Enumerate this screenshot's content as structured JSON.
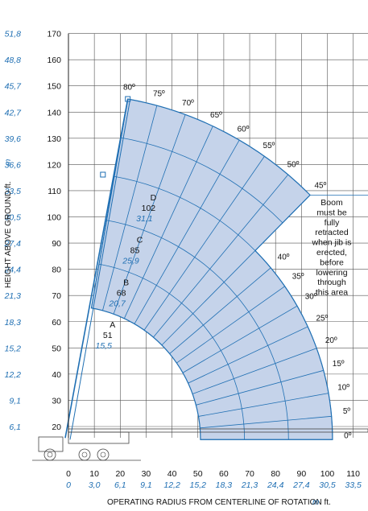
{
  "chart_data": {
    "type": "area",
    "title": "",
    "xlabel": "OPERATING RADIUS FROM CENTERLINE OF ROTATION ft.",
    "xlabel_unit": "m",
    "ylabel": "HEIGHT ABOVE GROUND ft.",
    "ylabel_unit": "m",
    "xlim": [
      0,
      110
    ],
    "ylim": [
      10,
      170
    ],
    "grid": true,
    "x_ticks_ft": [
      0,
      10,
      20,
      30,
      40,
      50,
      60,
      70,
      80,
      90,
      100,
      110
    ],
    "x_ticks_m": [
      "0",
      "3,0",
      "6,1",
      "9,1",
      "12,2",
      "15,2",
      "18,3",
      "21,3",
      "24,4",
      "27,4",
      "30,5",
      "33,5"
    ],
    "y_ticks_ft": [
      20,
      30,
      40,
      50,
      60,
      70,
      80,
      90,
      100,
      110,
      120,
      130,
      140,
      150,
      160,
      170
    ],
    "y_ticks_m": [
      "6,1",
      "9,1",
      "12,2",
      "15,2",
      "18,3",
      "21,3",
      "24,4",
      "27,4",
      "30,5",
      "33,5",
      "36,6",
      "39,6",
      "42,7",
      "45,7",
      "48,8",
      "51,8"
    ],
    "pivot": {
      "x": 0,
      "y": 15
    },
    "boom_sections": [
      {
        "name": "A",
        "length_ft": "51",
        "length_m": "15,5"
      },
      {
        "name": "B",
        "length_ft": "68",
        "length_m": "20,7"
      },
      {
        "name": "C",
        "length_ft": "85",
        "length_m": "25,9"
      },
      {
        "name": "D",
        "length_ft": "102",
        "length_m": "31,1"
      }
    ],
    "inner_radius": 51,
    "mid_radius": 102,
    "outer_radius": 132,
    "angle_labels_outer": [
      "80º",
      "75º",
      "70º",
      "65º",
      "60º",
      "55º",
      "50º",
      "45º"
    ],
    "angle_labels_inner": [
      "40º",
      "35º",
      "30º",
      "25º",
      "20º",
      "15º",
      "10º",
      "5º",
      "0º"
    ],
    "note": [
      "Boom",
      "must be",
      "fully",
      "retracted",
      "when jib is",
      "erected,",
      "before",
      "lowering",
      "through",
      "this area"
    ],
    "colors": {
      "envelope_fill": "#c5d3ea",
      "lines": "#1f6fb3",
      "metric_text": "#1f6fb3"
    }
  }
}
